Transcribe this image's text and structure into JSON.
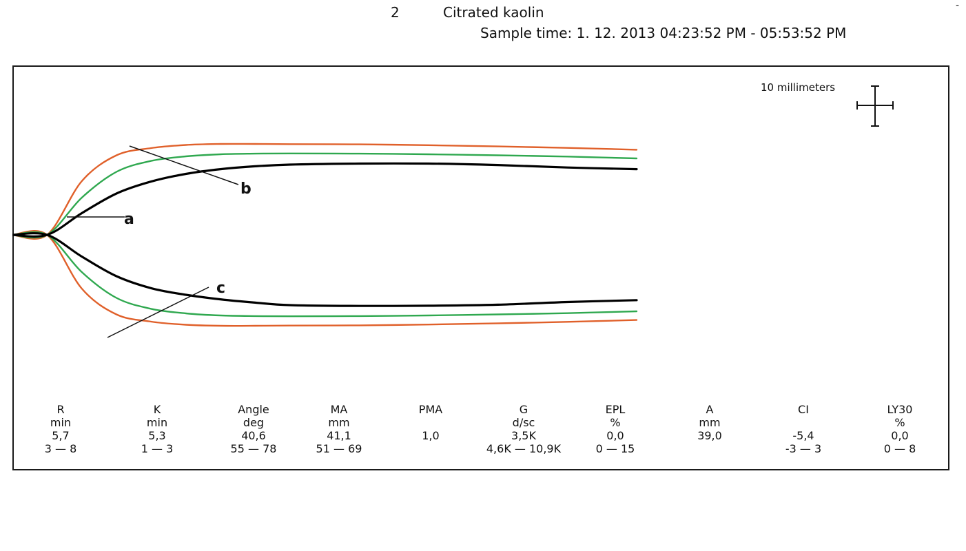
{
  "header": {
    "sample_number": "2",
    "sample_type": "Citrated kaolin",
    "sample_time": "Sample time:  1. 12. 2013 04:23:52 PM - 05:53:52 PM",
    "corner_mark": "-"
  },
  "scale_bar": {
    "label": "10 millimeters"
  },
  "callouts": {
    "a": "a",
    "b": "b",
    "c": "c"
  },
  "chart_data": {
    "type": "line",
    "title": "Citrated kaolin",
    "xlabel": "",
    "ylabel": "",
    "grid": false,
    "legend": "none",
    "units": "mm",
    "x": [
      0,
      5,
      10,
      15,
      20,
      25,
      30,
      35,
      40,
      50,
      60,
      70,
      80,
      90
    ],
    "series": [
      {
        "color": "#000000",
        "upper": [
          0,
          0,
          10.5,
          20.0,
          25.8,
          29.5,
          31.8,
          33.2,
          34.0,
          34.5,
          34.5,
          33.8,
          32.6,
          31.8
        ],
        "lower": [
          0,
          0,
          -10.5,
          -20.0,
          -25.8,
          -29.0,
          -31.2,
          -32.8,
          -34.0,
          -34.4,
          -34.3,
          -33.8,
          -32.5,
          -31.6
        ]
      },
      {
        "color": "#2fa84f",
        "upper": [
          0,
          0,
          18.0,
          30.5,
          35.8,
          38.0,
          39.0,
          39.3,
          39.4,
          39.3,
          39.0,
          38.5,
          37.9,
          37.0
        ],
        "lower": [
          0,
          0,
          -18.0,
          -30.5,
          -35.8,
          -38.0,
          -39.0,
          -39.3,
          -39.4,
          -39.3,
          -39.0,
          -38.5,
          -37.9,
          -37.0
        ]
      },
      {
        "color": "#e0602a",
        "upper": [
          0,
          0,
          26.0,
          38.5,
          42.0,
          43.5,
          44.0,
          44.0,
          43.9,
          43.8,
          43.4,
          42.8,
          42.1,
          41.2
        ],
        "lower": [
          0,
          0,
          -26.0,
          -38.5,
          -42.0,
          -43.5,
          -44.0,
          -44.0,
          -43.9,
          -43.8,
          -43.4,
          -42.8,
          -42.1,
          -41.2
        ]
      }
    ],
    "parameters": [
      {
        "name": "R",
        "unit": "min",
        "value": "5,7",
        "range": "3 — 8"
      },
      {
        "name": "K",
        "unit": "min",
        "value": "5,3",
        "range": "1 — 3"
      },
      {
        "name": "Angle",
        "unit": "deg",
        "value": "40,6",
        "range": "55 — 78"
      },
      {
        "name": "MA",
        "unit": "mm",
        "value": "41,1",
        "range": "51 — 69"
      },
      {
        "name": "PMA",
        "unit": "",
        "value": "1,0",
        "range": ""
      },
      {
        "name": "G",
        "unit": "d/sc",
        "value": "3,5K",
        "range": "4,6K — 10,9K"
      },
      {
        "name": "EPL",
        "unit": "%",
        "value": "0,0",
        "range": "0 — 15"
      },
      {
        "name": "A",
        "unit": "mm",
        "value": "39,0",
        "range": ""
      },
      {
        "name": "CI",
        "unit": "",
        "value": "-5,4",
        "range": "-3 — 3"
      },
      {
        "name": "LY30",
        "unit": "%",
        "value": "0,0",
        "range": "0 — 8"
      }
    ]
  }
}
